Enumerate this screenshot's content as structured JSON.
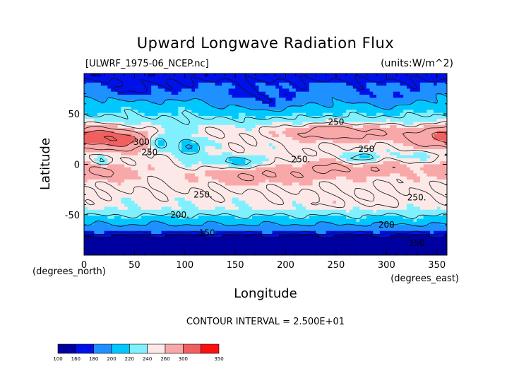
{
  "chart_data": {
    "type": "heatmap",
    "title": "Upward Longwave Radiation Flux",
    "subtitle_left": "[ULWRF_1975-06_NCEP.nc]",
    "units_label": "(units:W/m^2)",
    "xlabel": "Longitude",
    "ylabel": "Latitude",
    "x_units": "(degrees_east)",
    "y_units": "(degrees_north)",
    "xlim": [
      0,
      360
    ],
    "ylim": [
      -90,
      90
    ],
    "x_ticks": [
      0,
      50,
      100,
      150,
      200,
      250,
      300,
      350
    ],
    "y_ticks": [
      50,
      0,
      -50
    ],
    "contour_interval_text": "CONTOUR INTERVAL = 2.500E+01",
    "contour_labels": [
      {
        "text": "250",
        "lon": 250,
        "lat": 42
      },
      {
        "text": "250",
        "lon": 280,
        "lat": 15
      },
      {
        "text": "250.",
        "lon": 215,
        "lat": 5
      },
      {
        "text": "300",
        "lon": 57,
        "lat": 22
      },
      {
        "text": "250",
        "lon": 65,
        "lat": 12
      },
      {
        "text": "250.",
        "lon": 118,
        "lat": -30
      },
      {
        "text": "250.",
        "lon": 330,
        "lat": -33
      },
      {
        "text": "200.",
        "lon": 95,
        "lat": -50
      },
      {
        "text": "200",
        "lon": 300,
        "lat": -60
      },
      {
        "text": "150",
        "lon": 122,
        "lat": -68
      },
      {
        "text": "150",
        "lon": 330,
        "lat": -78
      }
    ],
    "colorbar": {
      "levels": [
        100,
        160,
        180,
        200,
        220,
        240,
        260,
        300,
        350
      ],
      "colors": [
        "#0000a0",
        "#0010e8",
        "#1e90ff",
        "#00c8ff",
        "#80f0ff",
        "#fde8e8",
        "#f8a8a8",
        "#f06060",
        "#ff1010"
      ]
    }
  }
}
